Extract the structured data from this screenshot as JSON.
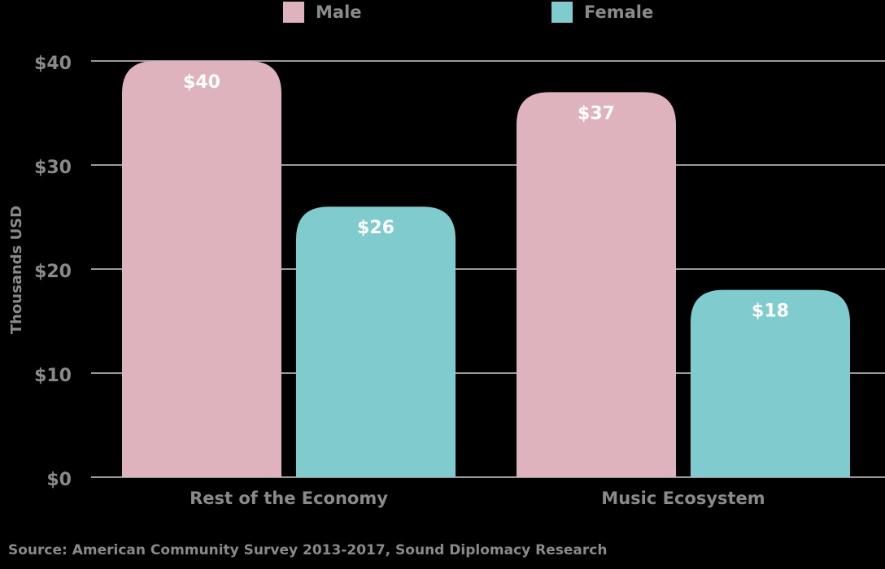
{
  "chart_data": {
    "type": "bar",
    "categories": [
      "Rest of the Economy",
      "Music Ecosystem"
    ],
    "series": [
      {
        "name": "Male",
        "values": [
          40,
          37
        ],
        "labels": [
          "$40",
          "$37"
        ],
        "color": "#deb3bd"
      },
      {
        "name": "Female",
        "values": [
          26,
          18
        ],
        "labels": [
          "$26",
          "$18"
        ],
        "color": "#80cbcd"
      }
    ],
    "ylabel": "Thousands USD",
    "xlabel": "",
    "ylim": [
      0,
      40
    ],
    "yticks": [
      0,
      10,
      20,
      30,
      40
    ],
    "ytick_labels": [
      "$0",
      "$10",
      "$20",
      "$30",
      "$40"
    ],
    "grid": true,
    "legend_position": "top"
  },
  "legend": {
    "male_label": "Male",
    "female_label": "Female"
  },
  "source": "Source: American Community Survey 2013-2017, Sound Diplomacy Research",
  "colors": {
    "background": "#000000",
    "text": "#8a8a8a",
    "grid": "#9a9a9a",
    "male": "#deb3bd",
    "female": "#80cbcd",
    "bar_label": "#ffffff"
  }
}
